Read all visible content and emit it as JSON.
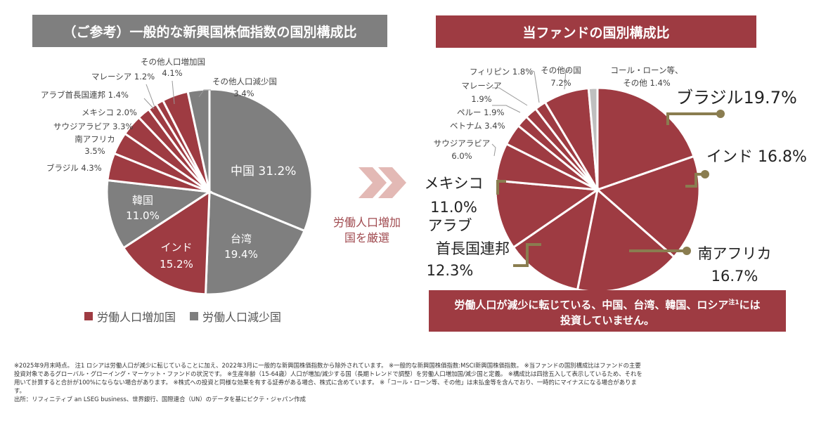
{
  "colors": {
    "increase": "#9e3b42",
    "decrease": "#7f7f7f",
    "cash": "#bfbfbf",
    "leader": "#8a7d50",
    "left_title_bg": "#7f7f7f",
    "right_title_bg": "#9e3b42"
  },
  "chart_data": [
    {
      "type": "pie",
      "title": "（ご参考）一般的な新興国株価指数の国別構成比",
      "slices": [
        {
          "label": "中国",
          "value": 31.2,
          "group": "decrease"
        },
        {
          "label": "台湾",
          "value": 19.4,
          "group": "decrease"
        },
        {
          "label": "インド",
          "value": 15.2,
          "group": "increase"
        },
        {
          "label": "韓国",
          "value": 11.0,
          "group": "decrease"
        },
        {
          "label": "ブラジル",
          "value": 4.3,
          "group": "increase"
        },
        {
          "label": "南アフリカ",
          "value": 3.5,
          "group": "increase"
        },
        {
          "label": "サウジアラビア",
          "value": 3.3,
          "group": "increase"
        },
        {
          "label": "メキシコ",
          "value": 2.0,
          "group": "increase"
        },
        {
          "label": "アラブ首長国連邦",
          "value": 1.4,
          "group": "increase"
        },
        {
          "label": "マレーシア",
          "value": 1.2,
          "group": "increase"
        },
        {
          "label": "その他人口増加国",
          "value": 4.1,
          "group": "increase"
        },
        {
          "label": "その他人口減少国",
          "value": 3.4,
          "group": "decrease"
        }
      ],
      "legend": [
        {
          "label": "労働人口増加国",
          "group": "increase"
        },
        {
          "label": "労働人口減少国",
          "group": "decrease"
        }
      ]
    },
    {
      "type": "pie",
      "title": "当ファンドの国別構成比",
      "slices": [
        {
          "label": "ブラジル",
          "value": 19.7,
          "group": "increase"
        },
        {
          "label": "インド",
          "value": 16.8,
          "group": "increase"
        },
        {
          "label": "南アフリカ",
          "value": 16.7,
          "group": "increase"
        },
        {
          "label": "アラブ首長国連邦",
          "value": 12.3,
          "group": "increase"
        },
        {
          "label": "メキシコ",
          "value": 11.0,
          "group": "increase"
        },
        {
          "label": "サウジアラビア",
          "value": 6.0,
          "group": "increase"
        },
        {
          "label": "ベトナム",
          "value": 3.4,
          "group": "increase"
        },
        {
          "label": "ペルー",
          "value": 1.9,
          "group": "increase"
        },
        {
          "label": "マレーシア",
          "value": 1.9,
          "group": "increase"
        },
        {
          "label": "フィリピン",
          "value": 1.8,
          "group": "increase"
        },
        {
          "label": "その他の国",
          "value": 7.2,
          "group": "increase"
        },
        {
          "label": "コール・ローン等、その他",
          "value": 1.4,
          "group": "cash"
        }
      ]
    }
  ],
  "text": {
    "left_title": "（ご参考）一般的な新興国株価指数の国別構成比",
    "right_title": "当ファンドの国別構成比",
    "l_china": "中国 31.2%",
    "l_taiwan": "台湾",
    "l_taiwan_v": "19.4%",
    "l_india": "インド",
    "l_india_v": "15.2%",
    "l_korea": "韓国",
    "l_korea_v": "11.0%",
    "l_brazil": "ブラジル 4.3%",
    "l_sa": "南アフリカ",
    "l_sa_v": "3.5%",
    "l_saudi": "サウジアラビア 3.3%",
    "l_mexico": "メキシコ 2.0%",
    "l_uae": "アラブ首長国連邦 1.4%",
    "l_malaysia": "マレーシア 1.2%",
    "l_oinc": "その他人口増加国",
    "l_oinc_v": "4.1%",
    "l_odec": "その他人口減少国",
    "l_odec_v": "3.4%",
    "legend_inc": "労働人口増加国",
    "legend_dec": "労働人口減少国",
    "middle_1": "労働人口増加",
    "middle_2": "国を厳選",
    "r_brazil": "ブラジル19.7%",
    "r_india": "インド 16.8%",
    "r_sa": "南アフリカ",
    "r_sa_v": "16.7%",
    "r_uae1": "アラブ",
    "r_uae2": "首長国連邦",
    "r_uae_v": "12.3%",
    "r_mexico": "メキシコ",
    "r_mexico_v": "11.0%",
    "r_saudi": "サウジアラビア",
    "r_saudi_v": "6.0%",
    "r_vietnam": "ベトナム 3.4%",
    "r_peru": "ペルー 1.9%",
    "r_malaysia": "マレーシア",
    "r_malaysia_v": "1.9%",
    "r_phil": "フィリピン 1.8%",
    "r_other": "その他の国",
    "r_other_v": "7.2%",
    "r_cash": "コール・ローン等、",
    "r_cash_v": "その他 1.4%",
    "notice_1": "労働人口が減少に転じている、中国、台湾、韓国、ロシア",
    "notice_sup": "注1",
    "notice_2": "には",
    "notice_3": "投資していません。",
    "foot_1": "※2025年9月末時点。 注1 ロシアは労働人口が減少に転じていることに加え、2022年3月に一般的な新興国株価指数から除外されています。 ※一般的な新興国株価指数:MSCI新興国株価指数。 ※当ファンドの国別構成比はファンドの主要投資対象であるグローバル・グローイング・マーケット・ファンドの状況です。 ※生産年齢（15-64歳）人口が増加/減少する国（長期トレンドで調整）を労働人口増加国/減少国と定義。 ※構成比は四捨五入して表示しているため、それを用いて計算すると合計が100%にならない場合があります。 ※株式への投資と同様な効果を有する証券がある場合、株式に含めています。 ※「コール・ローン等、その他」は未払金等を含んでおり、一時的にマイナスになる場合があります。",
    "foot_2": "出所：リフィニティブ an LSEG business、世界銀行、国際連合（UN）のデータを基にピクテ・ジャパン作成"
  }
}
